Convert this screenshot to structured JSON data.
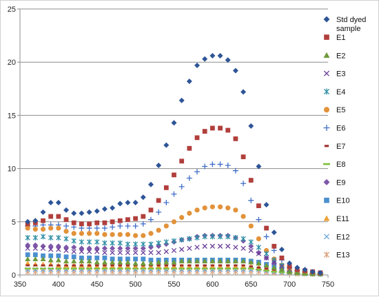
{
  "chart_data": {
    "type": "scatter",
    "title": "",
    "xlabel": "",
    "ylabel": "",
    "xlim": [
      350,
      750
    ],
    "ylim": [
      0,
      25
    ],
    "xticks": [
      350,
      400,
      450,
      500,
      550,
      600,
      650,
      700,
      750
    ],
    "yticks": [
      0,
      5,
      10,
      15,
      20,
      25
    ],
    "x_tick_labels": [
      "350",
      "400",
      "450",
      "500",
      "550",
      "600",
      "650",
      "700",
      "750"
    ],
    "y_tick_labels": [
      "0",
      "5",
      "10",
      "15",
      "20",
      "25"
    ],
    "grid": "horizontal",
    "legend_position": "right",
    "x": [
      360,
      370,
      380,
      390,
      400,
      410,
      420,
      430,
      440,
      450,
      460,
      470,
      480,
      490,
      500,
      510,
      520,
      530,
      540,
      550,
      560,
      570,
      580,
      590,
      600,
      610,
      620,
      630,
      640,
      650,
      660,
      670,
      680,
      690,
      700,
      710,
      720,
      730,
      740
    ],
    "series": [
      {
        "name": "Std dyed sample",
        "marker": "diamond",
        "color": "#2E5597",
        "values": [
          5.0,
          5.1,
          5.9,
          6.8,
          6.8,
          6.1,
          5.8,
          5.8,
          5.9,
          6.0,
          6.2,
          6.3,
          6.7,
          6.8,
          6.8,
          7.3,
          8.5,
          10.3,
          12.2,
          14.3,
          16.4,
          18.2,
          19.7,
          20.3,
          20.6,
          20.6,
          20.2,
          19.2,
          17.2,
          14.0,
          10.2,
          6.6,
          4.0,
          2.4,
          1.1,
          0.7,
          0.5,
          0.3,
          0.2
        ]
      },
      {
        "name": "E1",
        "marker": "square",
        "color": "#B13F3C",
        "values": [
          4.8,
          4.9,
          5.1,
          5.5,
          5.5,
          5.2,
          4.9,
          4.8,
          4.8,
          4.9,
          4.9,
          5.0,
          5.1,
          5.2,
          5.3,
          5.5,
          6.1,
          7.0,
          8.2,
          9.4,
          10.7,
          11.9,
          12.9,
          13.5,
          13.8,
          13.8,
          13.6,
          12.8,
          11.1,
          8.9,
          6.5,
          4.4,
          2.7,
          1.6,
          0.8,
          0.5,
          0.4,
          0.3,
          0.2
        ]
      },
      {
        "name": "E2",
        "marker": "triangle",
        "color": "#6E9A3A",
        "values": [
          1.5,
          1.5,
          1.5,
          1.4,
          1.4,
          1.3,
          1.3,
          1.3,
          1.3,
          1.2,
          1.2,
          1.2,
          1.2,
          1.2,
          1.1,
          1.1,
          1.1,
          1.2,
          1.2,
          1.2,
          1.3,
          1.3,
          1.3,
          1.3,
          1.3,
          1.3,
          1.3,
          1.3,
          1.3,
          1.2,
          1.1,
          0.9,
          0.7,
          0.5,
          0.3,
          0.2,
          0.15,
          0.1,
          0.1
        ]
      },
      {
        "name": "E3",
        "marker": "x",
        "color": "#6B3E9A",
        "values": [
          2.5,
          2.5,
          2.5,
          2.4,
          2.4,
          2.3,
          2.2,
          2.2,
          2.2,
          2.2,
          2.1,
          2.1,
          2.1,
          2.1,
          2.1,
          2.1,
          2.1,
          2.1,
          2.2,
          2.3,
          2.4,
          2.5,
          2.6,
          2.7,
          2.7,
          2.7,
          2.7,
          2.6,
          2.5,
          2.3,
          2.0,
          1.6,
          1.2,
          0.8,
          0.5,
          0.3,
          0.2,
          0.1,
          0.1
        ]
      },
      {
        "name": "E4",
        "marker": "asterisk",
        "color": "#2E8FA5",
        "values": [
          3.5,
          3.5,
          3.6,
          3.5,
          3.5,
          3.4,
          3.2,
          3.1,
          3.1,
          3.1,
          3.0,
          3.0,
          3.0,
          2.9,
          2.9,
          2.9,
          2.9,
          3.0,
          3.1,
          3.2,
          3.3,
          3.4,
          3.5,
          3.6,
          3.6,
          3.6,
          3.6,
          3.5,
          3.4,
          3.1,
          2.6,
          2.0,
          1.4,
          0.9,
          0.5,
          0.3,
          0.2,
          0.15,
          0.1
        ]
      },
      {
        "name": "E5",
        "marker": "circle",
        "color": "#E2923A",
        "values": [
          4.4,
          4.3,
          4.3,
          4.4,
          4.4,
          4.1,
          3.9,
          3.9,
          3.9,
          3.9,
          3.8,
          3.8,
          3.8,
          3.8,
          3.7,
          3.7,
          3.9,
          4.2,
          4.6,
          5.0,
          5.4,
          5.8,
          6.1,
          6.3,
          6.4,
          6.4,
          6.3,
          6.1,
          5.5,
          4.6,
          3.4,
          2.3,
          1.5,
          0.9,
          0.5,
          0.3,
          0.2,
          0.15,
          0.1
        ]
      },
      {
        "name": "E6",
        "marker": "plus",
        "color": "#3E6CC8",
        "values": [
          4.6,
          4.6,
          4.7,
          4.7,
          4.7,
          4.6,
          4.5,
          4.4,
          4.4,
          4.4,
          4.4,
          4.5,
          4.6,
          4.6,
          4.6,
          4.8,
          5.2,
          5.9,
          6.8,
          7.6,
          8.3,
          9.1,
          9.7,
          10.2,
          10.4,
          10.4,
          10.3,
          9.8,
          8.6,
          7.0,
          5.2,
          3.6,
          2.3,
          1.4,
          0.7,
          0.4,
          0.3,
          0.2,
          0.15
        ]
      },
      {
        "name": "E7",
        "marker": "dash",
        "color": "#A0312E",
        "values": [
          0.9,
          0.9,
          0.9,
          0.9,
          0.9,
          0.9,
          0.9,
          0.9,
          0.9,
          0.9,
          0.9,
          0.9,
          0.9,
          0.9,
          0.9,
          0.9,
          0.9,
          0.9,
          0.9,
          0.9,
          0.9,
          0.9,
          0.9,
          0.9,
          0.9,
          0.9,
          0.9,
          0.9,
          0.9,
          0.8,
          0.7,
          0.6,
          0.5,
          0.4,
          0.3,
          0.2,
          0.15,
          0.1,
          0.1
        ]
      },
      {
        "name": "E8",
        "marker": "longdash",
        "color": "#7FBF3F",
        "values": [
          0.6,
          0.6,
          0.6,
          0.6,
          0.6,
          0.6,
          0.6,
          0.6,
          0.6,
          0.6,
          0.6,
          0.6,
          0.6,
          0.6,
          0.6,
          0.6,
          0.6,
          0.6,
          0.6,
          0.6,
          0.6,
          0.6,
          0.6,
          0.6,
          0.6,
          0.6,
          0.6,
          0.6,
          0.6,
          0.6,
          0.5,
          0.4,
          0.3,
          0.25,
          0.2,
          0.15,
          0.1,
          0.1,
          0.1
        ]
      },
      {
        "name": "E9",
        "marker": "diamond",
        "color": "#7E57A8",
        "values": [
          2.8,
          2.8,
          2.7,
          2.7,
          2.7,
          2.6,
          2.6,
          2.5,
          2.5,
          2.5,
          2.5,
          2.5,
          2.5,
          2.5,
          2.5,
          2.5,
          2.6,
          2.7,
          2.9,
          3.1,
          3.3,
          3.4,
          3.6,
          3.7,
          3.7,
          3.7,
          3.7,
          3.5,
          3.2,
          2.7,
          2.1,
          1.6,
          1.1,
          0.7,
          0.4,
          0.3,
          0.2,
          0.15,
          0.1
        ]
      },
      {
        "name": "E10",
        "marker": "square",
        "color": "#4A90D0",
        "values": [
          1.9,
          1.9,
          1.8,
          1.8,
          1.8,
          1.7,
          1.7,
          1.6,
          1.6,
          1.6,
          1.6,
          1.5,
          1.5,
          1.5,
          1.5,
          1.5,
          1.4,
          1.4,
          1.4,
          1.4,
          1.4,
          1.4,
          1.4,
          1.4,
          1.4,
          1.4,
          1.4,
          1.4,
          1.4,
          1.3,
          1.2,
          1.0,
          0.8,
          0.6,
          0.4,
          0.3,
          0.2,
          0.15,
          0.1
        ]
      },
      {
        "name": "E11",
        "marker": "triangle",
        "color": "#F0A23A",
        "values": [
          1.1,
          1.0,
          1.0,
          1.0,
          0.9,
          0.9,
          0.9,
          0.9,
          0.9,
          0.8,
          0.8,
          0.8,
          0.8,
          0.8,
          0.8,
          0.8,
          0.8,
          0.8,
          0.8,
          0.8,
          0.8,
          0.8,
          0.8,
          0.8,
          0.8,
          0.8,
          0.8,
          0.8,
          0.8,
          0.8,
          0.7,
          0.6,
          0.5,
          0.4,
          0.3,
          0.2,
          0.15,
          0.1,
          0.1
        ]
      },
      {
        "name": "E12",
        "marker": "x",
        "color": "#6BA6D9",
        "values": [
          0.5,
          0.5,
          0.5,
          0.5,
          0.5,
          0.5,
          0.5,
          0.5,
          0.5,
          0.5,
          0.5,
          0.5,
          0.5,
          0.5,
          0.5,
          0.5,
          0.5,
          0.5,
          0.5,
          0.5,
          0.5,
          0.5,
          0.5,
          0.5,
          0.5,
          0.5,
          0.5,
          0.5,
          0.5,
          0.5,
          0.5,
          0.4,
          0.3,
          0.25,
          0.2,
          0.15,
          0.1,
          0.1,
          0.1
        ]
      },
      {
        "name": "E13",
        "marker": "asterisk",
        "color": "#D9A07A",
        "values": [
          0.3,
          0.3,
          0.3,
          0.3,
          0.3,
          0.3,
          0.3,
          0.3,
          0.3,
          0.3,
          0.3,
          0.3,
          0.3,
          0.3,
          0.3,
          0.3,
          0.3,
          0.3,
          0.3,
          0.3,
          0.3,
          0.3,
          0.3,
          0.3,
          0.3,
          0.3,
          0.3,
          0.3,
          0.3,
          0.3,
          0.3,
          0.25,
          0.2,
          0.2,
          0.15,
          0.1,
          0.1,
          0.1,
          0.1
        ]
      }
    ]
  }
}
